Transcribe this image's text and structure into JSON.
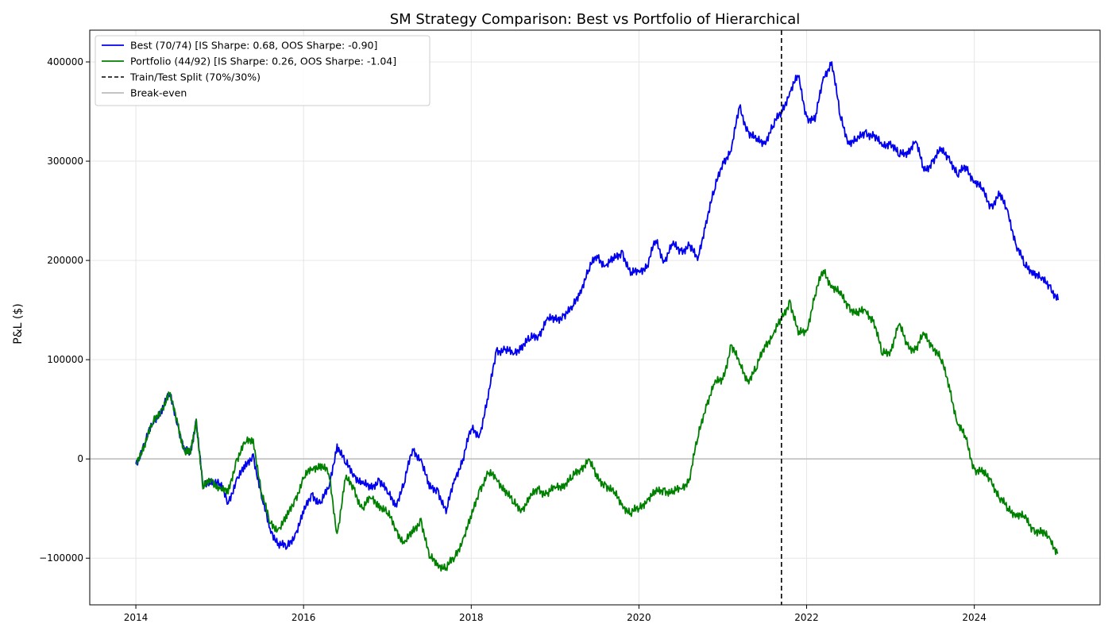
{
  "chart_data": {
    "type": "line",
    "title": "SM Strategy Comparison: Best vs Portfolio of Hierarchical",
    "xlabel": "",
    "ylabel": "P&L ($)",
    "xlim": [
      2013.45,
      2025.5
    ],
    "ylim": [
      -147000,
      432000
    ],
    "x_ticks": [
      2014,
      2016,
      2018,
      2020,
      2022,
      2024
    ],
    "y_ticks": [
      -100000,
      0,
      100000,
      200000,
      300000,
      400000
    ],
    "grid": true,
    "legend_position": "top-left",
    "split_x": 2021.7,
    "breakeven_y": 0,
    "series": [
      {
        "name": "Best (70/74) [IS Sharpe: 0.68, OOS Sharpe: -0.90]",
        "color": "#0000ee",
        "x": [
          2014.0,
          2014.1,
          2014.2,
          2014.3,
          2014.4,
          2014.5,
          2014.58,
          2014.65,
          2014.72,
          2014.8,
          2014.9,
          2015.0,
          2015.1,
          2015.2,
          2015.3,
          2015.4,
          2015.5,
          2015.6,
          2015.7,
          2015.8,
          2015.9,
          2016.0,
          2016.1,
          2016.2,
          2016.3,
          2016.4,
          2016.5,
          2016.6,
          2016.7,
          2016.8,
          2016.9,
          2017.0,
          2017.1,
          2017.2,
          2017.3,
          2017.4,
          2017.5,
          2017.6,
          2017.7,
          2017.8,
          2017.9,
          2018.0,
          2018.1,
          2018.2,
          2018.3,
          2018.4,
          2018.5,
          2018.6,
          2018.7,
          2018.8,
          2018.9,
          2019.0,
          2019.1,
          2019.2,
          2019.3,
          2019.4,
          2019.5,
          2019.6,
          2019.7,
          2019.8,
          2019.9,
          2020.0,
          2020.1,
          2020.2,
          2020.3,
          2020.4,
          2020.5,
          2020.6,
          2020.7,
          2020.8,
          2020.9,
          2021.0,
          2021.1,
          2021.2,
          2021.3,
          2021.4,
          2021.5,
          2021.6,
          2021.7,
          2021.8,
          2021.9,
          2022.0,
          2022.1,
          2022.2,
          2022.3,
          2022.4,
          2022.5,
          2022.6,
          2022.7,
          2022.8,
          2022.9,
          2023.0,
          2023.1,
          2023.2,
          2023.3,
          2023.4,
          2023.5,
          2023.6,
          2023.7,
          2023.8,
          2023.9,
          2024.0,
          2024.1,
          2024.2,
          2024.3,
          2024.4,
          2024.5,
          2024.6,
          2024.7,
          2024.8,
          2024.9,
          2025.0
        ],
        "y": [
          -5000,
          15000,
          35000,
          50000,
          65000,
          35000,
          8000,
          5000,
          40000,
          -30000,
          -20000,
          -25000,
          -45000,
          -20000,
          -10000,
          5000,
          -40000,
          -70000,
          -85000,
          -90000,
          -75000,
          -55000,
          -35000,
          -45000,
          -30000,
          15000,
          -5000,
          -15000,
          -25000,
          -30000,
          -20000,
          -35000,
          -45000,
          -25000,
          10000,
          0,
          -30000,
          -30000,
          -55000,
          -20000,
          0,
          30000,
          25000,
          60000,
          110000,
          110000,
          105000,
          115000,
          120000,
          125000,
          140000,
          140000,
          145000,
          150000,
          170000,
          190000,
          205000,
          195000,
          200000,
          210000,
          185000,
          190000,
          195000,
          220000,
          200000,
          215000,
          210000,
          215000,
          200000,
          240000,
          270000,
          300000,
          310000,
          355000,
          330000,
          320000,
          320000,
          335000,
          350000,
          370000,
          385000,
          345000,
          340000,
          385000,
          400000,
          345000,
          320000,
          320000,
          330000,
          325000,
          315000,
          320000,
          305000,
          310000,
          320000,
          290000,
          300000,
          310000,
          305000,
          285000,
          295000,
          280000,
          270000,
          255000,
          265000,
          250000,
          215000,
          195000,
          190000,
          180000,
          175000,
          160000
        ]
      },
      {
        "name": "Portfolio (44/92) [IS Sharpe: 0.26, OOS Sharpe: -1.04]",
        "color": "#008000",
        "x": [
          2014.0,
          2014.1,
          2014.2,
          2014.3,
          2014.4,
          2014.5,
          2014.58,
          2014.65,
          2014.72,
          2014.8,
          2014.9,
          2015.0,
          2015.1,
          2015.2,
          2015.3,
          2015.4,
          2015.5,
          2015.6,
          2015.7,
          2015.8,
          2015.9,
          2016.0,
          2016.1,
          2016.2,
          2016.3,
          2016.4,
          2016.5,
          2016.6,
          2016.7,
          2016.8,
          2016.9,
          2017.0,
          2017.1,
          2017.2,
          2017.3,
          2017.4,
          2017.5,
          2017.6,
          2017.7,
          2017.8,
          2017.9,
          2018.0,
          2018.1,
          2018.2,
          2018.3,
          2018.4,
          2018.5,
          2018.6,
          2018.7,
          2018.8,
          2018.9,
          2019.0,
          2019.1,
          2019.2,
          2019.3,
          2019.4,
          2019.5,
          2019.6,
          2019.7,
          2019.8,
          2019.9,
          2020.0,
          2020.1,
          2020.2,
          2020.3,
          2020.4,
          2020.5,
          2020.6,
          2020.7,
          2020.8,
          2020.9,
          2021.0,
          2021.1,
          2021.2,
          2021.3,
          2021.4,
          2021.5,
          2021.6,
          2021.7,
          2021.8,
          2021.9,
          2022.0,
          2022.1,
          2022.2,
          2022.3,
          2022.4,
          2022.5,
          2022.6,
          2022.7,
          2022.8,
          2022.9,
          2023.0,
          2023.1,
          2023.2,
          2023.3,
          2023.4,
          2023.5,
          2023.6,
          2023.7,
          2023.8,
          2023.9,
          2024.0,
          2024.1,
          2024.2,
          2024.3,
          2024.4,
          2024.5,
          2024.6,
          2024.7,
          2024.8,
          2024.9,
          2025.0
        ],
        "y": [
          -5000,
          15000,
          35000,
          50000,
          65000,
          35000,
          8000,
          5000,
          40000,
          -30000,
          -20000,
          -30000,
          -35000,
          0,
          15000,
          20000,
          -35000,
          -65000,
          -70000,
          -60000,
          -40000,
          -20000,
          -10000,
          -5000,
          -15000,
          -75000,
          -20000,
          -30000,
          -50000,
          -40000,
          -45000,
          -55000,
          -70000,
          -85000,
          -75000,
          -60000,
          -100000,
          -105000,
          -110000,
          -100000,
          -80000,
          -60000,
          -30000,
          -15000,
          -20000,
          -30000,
          -45000,
          -50000,
          -40000,
          -30000,
          -35000,
          -30000,
          -25000,
          -20000,
          -10000,
          0,
          -20000,
          -25000,
          -35000,
          -45000,
          -55000,
          -50000,
          -40000,
          -35000,
          -30000,
          -35000,
          -30000,
          -20000,
          20000,
          55000,
          75000,
          80000,
          115000,
          95000,
          80000,
          90000,
          115000,
          125000,
          140000,
          160000,
          125000,
          130000,
          165000,
          190000,
          175000,
          165000,
          155000,
          145000,
          150000,
          140000,
          105000,
          110000,
          135000,
          115000,
          110000,
          125000,
          115000,
          100000,
          75000,
          35000,
          20000,
          -10000,
          -15000,
          -20000,
          -40000,
          -50000,
          -55000,
          -60000,
          -70000,
          -75000,
          -80000,
          -95000
        ]
      }
    ],
    "legend": [
      {
        "label": "Best (70/74) [IS Sharpe: 0.68, OOS Sharpe: -0.90]",
        "color": "#0000ee",
        "style": "solid"
      },
      {
        "label": "Portfolio (44/92) [IS Sharpe: 0.26, OOS Sharpe: -1.04]",
        "color": "#008000",
        "style": "solid"
      },
      {
        "label": "Train/Test Split (70%/30%)",
        "color": "#000000",
        "style": "dashed"
      },
      {
        "label": "Break-even",
        "color": "#bbbbbb",
        "style": "solid"
      }
    ]
  }
}
